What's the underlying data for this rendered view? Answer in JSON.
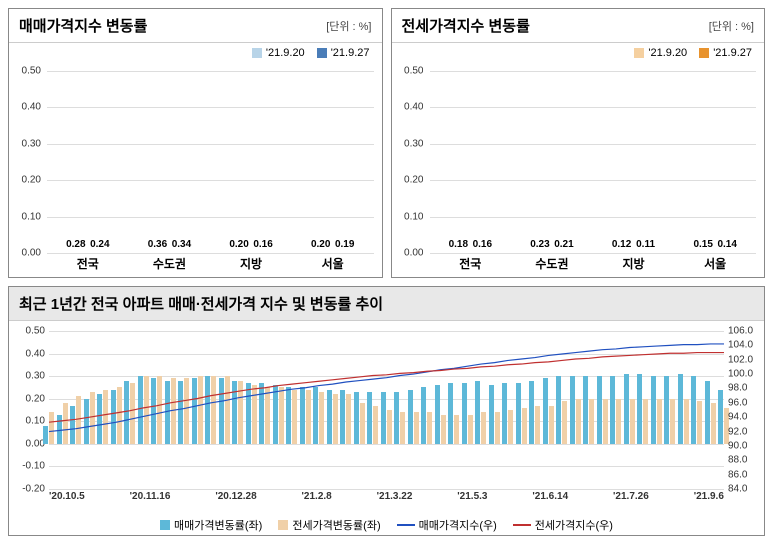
{
  "left_chart": {
    "type": "bar",
    "title": "매매가격지수 변동률",
    "unit": "[단위 : %]",
    "categories": [
      "전국",
      "수도권",
      "지방",
      "서울"
    ],
    "series": [
      {
        "name": "'21.9.20",
        "color": "#b8d4e8",
        "values": [
          0.28,
          0.36,
          0.2,
          0.2
        ]
      },
      {
        "name": "'21.9.27",
        "color": "#4a7db8",
        "values": [
          0.24,
          0.34,
          0.16,
          0.19
        ]
      }
    ],
    "ylim": [
      0,
      0.5
    ],
    "ytick_step": 0.1,
    "grid_color": "#dddddd",
    "background_color": "#ffffff"
  },
  "right_chart": {
    "type": "bar",
    "title": "전세가격지수 변동률",
    "unit": "[단위 : %]",
    "categories": [
      "전국",
      "수도권",
      "지방",
      "서울"
    ],
    "series": [
      {
        "name": "'21.9.20",
        "color": "#f5d0a0",
        "values": [
          0.18,
          0.23,
          0.12,
          0.15
        ]
      },
      {
        "name": "'21.9.27",
        "color": "#e8932e",
        "values": [
          0.16,
          0.21,
          0.11,
          0.14
        ]
      }
    ],
    "ylim": [
      0,
      0.5
    ],
    "ytick_step": 0.1,
    "grid_color": "#dddddd",
    "background_color": "#ffffff"
  },
  "trend_chart": {
    "type": "combo",
    "title": "최근 1년간 전국 아파트 매매·전세가격 지수 및 변동률 추이",
    "x_labels": [
      "'20.10.5",
      "'20.11.16",
      "'20.12.28",
      "'21.2.8",
      "'21.3.22",
      "'21.5.3",
      "'21.6.14",
      "'21.7.26",
      "'21.9.6"
    ],
    "ylim_left": [
      -0.2,
      0.5
    ],
    "ytick_left_step": 0.1,
    "ylim_right": [
      84.0,
      106.0
    ],
    "ytick_right_step": 2.0,
    "bar_series": [
      {
        "name": "매매가격변동률(좌)",
        "color": "#5db8d8",
        "values": [
          0.08,
          0.13,
          0.17,
          0.2,
          0.22,
          0.24,
          0.28,
          0.3,
          0.29,
          0.28,
          0.28,
          0.29,
          0.3,
          0.29,
          0.28,
          0.27,
          0.27,
          0.26,
          0.25,
          0.25,
          0.25,
          0.24,
          0.24,
          0.23,
          0.23,
          0.23,
          0.23,
          0.24,
          0.25,
          0.26,
          0.27,
          0.27,
          0.28,
          0.26,
          0.27,
          0.27,
          0.28,
          0.29,
          0.3,
          0.3,
          0.3,
          0.3,
          0.3,
          0.31,
          0.31,
          0.3,
          0.3,
          0.31,
          0.3,
          0.28,
          0.24
        ]
      },
      {
        "name": "전세가격변동률(좌)",
        "color": "#f0d0a8",
        "values": [
          0.14,
          0.18,
          0.21,
          0.23,
          0.24,
          0.25,
          0.27,
          0.3,
          0.3,
          0.29,
          0.29,
          0.3,
          0.3,
          0.3,
          0.28,
          0.26,
          0.25,
          0.25,
          0.24,
          0.24,
          0.23,
          0.22,
          0.22,
          0.18,
          0.17,
          0.15,
          0.14,
          0.14,
          0.14,
          0.13,
          0.13,
          0.13,
          0.14,
          0.14,
          0.15,
          0.16,
          0.17,
          0.17,
          0.19,
          0.2,
          0.2,
          0.2,
          0.2,
          0.2,
          0.2,
          0.2,
          0.2,
          0.2,
          0.19,
          0.18,
          0.16
        ]
      }
    ],
    "line_series": [
      {
        "name": "매매가격지수(우)",
        "color": "#2050c0",
        "values": [
          92.0,
          92.2,
          92.4,
          92.7,
          93.0,
          93.3,
          93.7,
          94.1,
          94.5,
          94.9,
          95.2,
          95.6,
          96.0,
          96.3,
          96.7,
          97.0,
          97.3,
          97.6,
          97.9,
          98.1,
          98.4,
          98.6,
          98.9,
          99.1,
          99.3,
          99.5,
          99.8,
          100.0,
          100.3,
          100.6,
          100.8,
          101.1,
          101.4,
          101.6,
          101.9,
          102.1,
          102.3,
          102.6,
          102.8,
          103.0,
          103.2,
          103.4,
          103.5,
          103.7,
          103.8,
          103.9,
          104.0,
          104.1,
          104.1,
          104.2,
          104.2
        ]
      },
      {
        "name": "전세가격지수(우)",
        "color": "#c03030",
        "values": [
          93.3,
          93.5,
          93.7,
          94.0,
          94.3,
          94.6,
          94.9,
          95.3,
          95.6,
          96.0,
          96.3,
          96.6,
          97.0,
          97.3,
          97.6,
          97.9,
          98.1,
          98.4,
          98.6,
          98.8,
          99.0,
          99.2,
          99.4,
          99.6,
          99.8,
          99.9,
          100.1,
          100.2,
          100.4,
          100.5,
          100.7,
          100.8,
          101.0,
          101.1,
          101.3,
          101.4,
          101.6,
          101.7,
          101.9,
          102.1,
          102.2,
          102.4,
          102.5,
          102.6,
          102.7,
          102.8,
          102.9,
          102.9,
          103.0,
          103.0,
          103.0
        ]
      }
    ],
    "grid_color": "#dddddd",
    "background_color": "#ffffff"
  }
}
